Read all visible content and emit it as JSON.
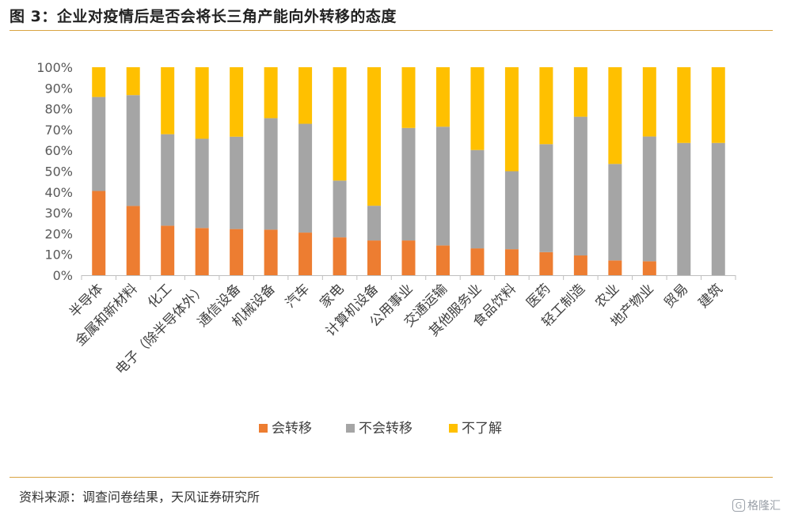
{
  "title": "图 3：企业对疫情后是否会将长三角产能向外转移的态度",
  "source": "资料来源：调查问卷结果，天风证券研究所",
  "watermark": {
    "text": "格隆汇",
    "icon": "g-logo-icon"
  },
  "chart_data": {
    "type": "bar",
    "stacked": true,
    "percent_stacked": true,
    "categories": [
      "半导体",
      "金属和新材料",
      "化工",
      "电子（除半导体外）",
      "通信设备",
      "机械设备",
      "汽车",
      "家电",
      "计算机设备",
      "公用事业",
      "交通运输",
      "其他服务业",
      "食品饮料",
      "医药",
      "轻工制造",
      "农业",
      "地产物业",
      "贸易",
      "建筑"
    ],
    "series": [
      {
        "name": "会转移",
        "color": "#ED7D31",
        "values": [
          40.5,
          33.3,
          23.8,
          22.7,
          22.2,
          21.9,
          20.5,
          18.2,
          16.7,
          16.7,
          14.3,
          12.9,
          12.5,
          11.1,
          9.5,
          7.1,
          6.7,
          0,
          0
        ]
      },
      {
        "name": "不会转移",
        "color": "#A5A5A5",
        "values": [
          45.2,
          53.3,
          44.0,
          42.9,
          44.4,
          53.6,
          52.3,
          27.3,
          16.7,
          54.1,
          57.1,
          47.3,
          37.5,
          51.9,
          66.7,
          46.4,
          60.0,
          63.6,
          63.6
        ]
      },
      {
        "name": "不了解",
        "color": "#FFC000",
        "values": [
          14.3,
          13.4,
          32.2,
          34.4,
          33.4,
          24.5,
          27.2,
          54.5,
          66.6,
          29.2,
          28.6,
          39.8,
          50.0,
          37.0,
          23.8,
          46.5,
          33.3,
          36.4,
          36.4
        ]
      }
    ],
    "ylim": [
      0,
      100
    ],
    "y_ticks": [
      "0%",
      "10%",
      "20%",
      "30%",
      "40%",
      "50%",
      "60%",
      "70%",
      "80%",
      "90%",
      "100%"
    ],
    "grid": false,
    "legend_position": "bottom"
  }
}
